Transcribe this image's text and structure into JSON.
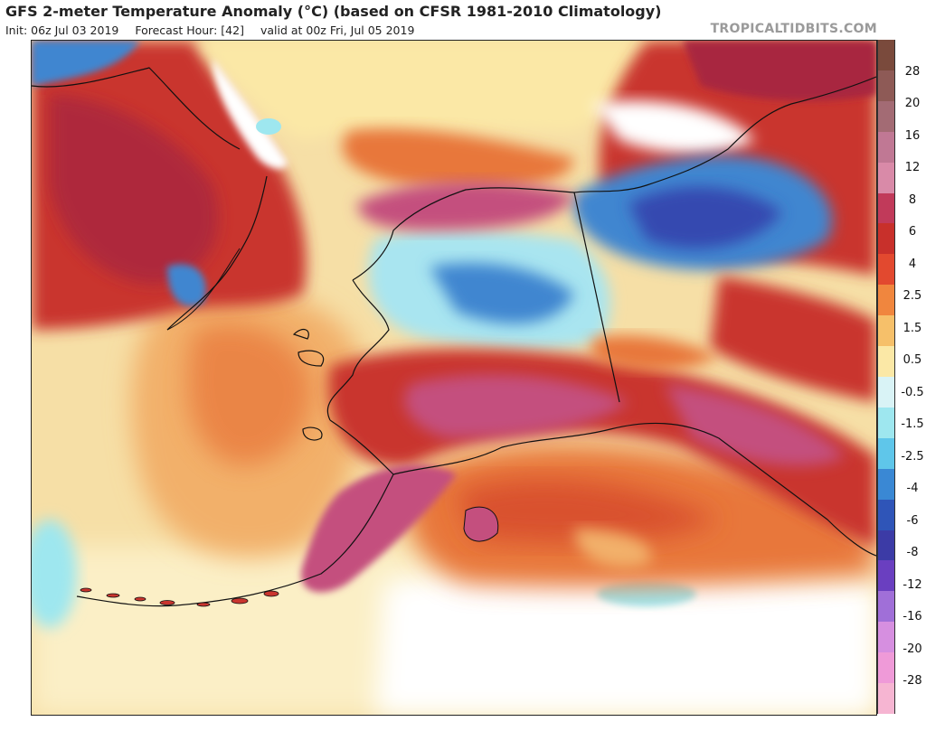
{
  "header": {
    "title": "GFS 2-meter Temperature Anomaly (°C) (based on CFSR 1981-2010 Climatology)",
    "init": "Init: 06z Jul 03 2019",
    "forecast_hour": "Forecast Hour: [42]",
    "valid": "valid at 00z Fri, Jul 05 2019",
    "brand": "TROPICALTIDBITS.COM"
  },
  "colorbar": {
    "labels": [
      "28",
      "20",
      "16",
      "12",
      "8",
      "6",
      "4",
      "2.5",
      "1.5",
      "0.5",
      "-0.5",
      "-1.5",
      "-2.5",
      "-4",
      "-6",
      "-8",
      "-12",
      "-16",
      "-20",
      "-28"
    ],
    "colors": [
      "#7a4a3c",
      "#8e5a56",
      "#a36b74",
      "#c07894",
      "#d98aa8",
      "#c13a5a",
      "#c8302b",
      "#e2492f",
      "#f0863e",
      "#f6c06a",
      "#fbe8a6",
      "#d9f3f6",
      "#9ee7ef",
      "#5fc6ea",
      "#3a88d4",
      "#2f55b8",
      "#3c3ba6",
      "#6a3fc0",
      "#a06fd8",
      "#d68fe0",
      "#ef9ad8",
      "#f6b5d2"
    ]
  },
  "map": {
    "colors": {
      "ocean_base": "#f6dfa6",
      "warm_light": "#f2b06a",
      "warm_orange": "#e8773a",
      "warm_red": "#c9352e",
      "warm_deep": "#a82540",
      "warm_magenta": "#c44f7e",
      "cool_light": "#a9e5f0",
      "cool_blue": "#3f86d0",
      "cool_deep": "#3449b0",
      "neutral_white": "#ffffff",
      "coast": "#111111"
    }
  }
}
